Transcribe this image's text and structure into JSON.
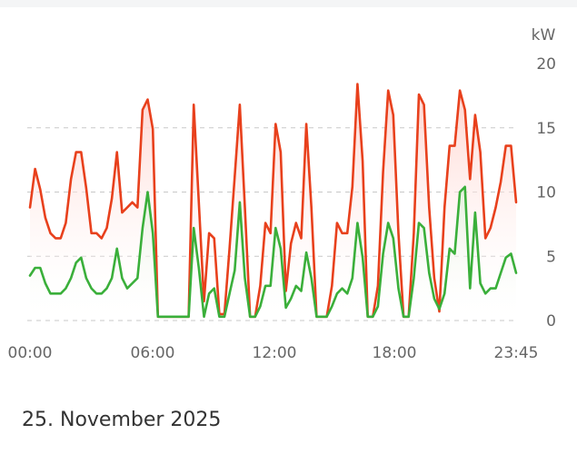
{
  "date": "25. November 2025",
  "chart_data": {
    "type": "area",
    "unit": "kW",
    "ylim": [
      0,
      20
    ],
    "y_ticks": [
      0,
      5,
      10,
      15,
      20
    ],
    "x_ticks": [
      "00:00",
      "06:00",
      "12:00",
      "18:00",
      "23:45"
    ],
    "grid": true,
    "series": [
      {
        "color": "#e8401c",
        "fill_top": "#ffd2cc",
        "points": [
          [
            0.0,
            8.8
          ],
          [
            0.25,
            11.8
          ],
          [
            0.5,
            10.2
          ],
          [
            0.75,
            8.0
          ],
          [
            1.0,
            6.8
          ],
          [
            1.25,
            6.4
          ],
          [
            1.5,
            6.4
          ],
          [
            1.75,
            7.6
          ],
          [
            2.0,
            11.0
          ],
          [
            2.25,
            13.1
          ],
          [
            2.5,
            13.1
          ],
          [
            2.75,
            10.3
          ],
          [
            3.0,
            6.8
          ],
          [
            3.25,
            6.8
          ],
          [
            3.5,
            6.4
          ],
          [
            3.75,
            7.2
          ],
          [
            4.0,
            9.5
          ],
          [
            4.25,
            13.1
          ],
          [
            4.5,
            8.4
          ],
          [
            4.75,
            8.8
          ],
          [
            5.0,
            9.2
          ],
          [
            5.25,
            8.8
          ],
          [
            5.5,
            16.4
          ],
          [
            5.75,
            17.2
          ],
          [
            6.0,
            14.9
          ],
          [
            6.25,
            0.3
          ],
          [
            7.75,
            0.3
          ],
          [
            8.0,
            16.8
          ],
          [
            8.25,
            9.2
          ],
          [
            8.5,
            1.5
          ],
          [
            8.75,
            6.8
          ],
          [
            9.0,
            6.4
          ],
          [
            9.25,
            0.5
          ],
          [
            9.5,
            0.5
          ],
          [
            9.75,
            5.6
          ],
          [
            10.0,
            11.2
          ],
          [
            10.25,
            16.8
          ],
          [
            10.5,
            8.8
          ],
          [
            10.75,
            0.3
          ],
          [
            11.0,
            0.3
          ],
          [
            11.25,
            2.7
          ],
          [
            11.5,
            7.6
          ],
          [
            11.75,
            6.8
          ],
          [
            12.0,
            15.3
          ],
          [
            12.25,
            13.1
          ],
          [
            12.5,
            2.3
          ],
          [
            12.75,
            6.0
          ],
          [
            13.0,
            7.6
          ],
          [
            13.25,
            6.4
          ],
          [
            13.5,
            15.3
          ],
          [
            13.75,
            8.8
          ],
          [
            14.0,
            0.3
          ],
          [
            14.25,
            0.3
          ],
          [
            14.5,
            0.3
          ],
          [
            14.75,
            2.7
          ],
          [
            15.0,
            7.6
          ],
          [
            15.25,
            6.8
          ],
          [
            15.5,
            6.8
          ],
          [
            15.75,
            10.4
          ],
          [
            16.0,
            18.4
          ],
          [
            16.25,
            12.4
          ],
          [
            16.5,
            0.3
          ],
          [
            16.75,
            0.3
          ],
          [
            17.0,
            2.7
          ],
          [
            17.25,
            11.6
          ],
          [
            17.5,
            17.9
          ],
          [
            17.75,
            16.0
          ],
          [
            18.0,
            6.8
          ],
          [
            18.25,
            0.3
          ],
          [
            18.5,
            0.3
          ],
          [
            18.75,
            6.8
          ],
          [
            19.0,
            17.6
          ],
          [
            19.25,
            16.8
          ],
          [
            19.5,
            8.8
          ],
          [
            19.75,
            3.3
          ],
          [
            20.0,
            0.7
          ],
          [
            20.25,
            8.8
          ],
          [
            20.5,
            13.6
          ],
          [
            20.75,
            13.6
          ],
          [
            21.0,
            17.9
          ],
          [
            21.25,
            16.4
          ],
          [
            21.5,
            11.0
          ],
          [
            21.75,
            16.0
          ],
          [
            22.0,
            13.1
          ],
          [
            22.25,
            6.4
          ],
          [
            22.5,
            7.2
          ],
          [
            22.75,
            8.8
          ],
          [
            23.0,
            10.8
          ],
          [
            23.25,
            13.6
          ],
          [
            23.5,
            13.6
          ],
          [
            23.75,
            9.2
          ]
        ]
      },
      {
        "color": "#3aaf3a",
        "fill_top": "#e5f2df",
        "points": [
          [
            0.0,
            3.5
          ],
          [
            0.25,
            4.1
          ],
          [
            0.5,
            4.1
          ],
          [
            0.75,
            2.9
          ],
          [
            1.0,
            2.1
          ],
          [
            1.25,
            2.1
          ],
          [
            1.5,
            2.1
          ],
          [
            1.75,
            2.5
          ],
          [
            2.0,
            3.3
          ],
          [
            2.25,
            4.5
          ],
          [
            2.5,
            4.9
          ],
          [
            2.75,
            3.3
          ],
          [
            3.0,
            2.5
          ],
          [
            3.25,
            2.1
          ],
          [
            3.5,
            2.1
          ],
          [
            3.75,
            2.5
          ],
          [
            4.0,
            3.3
          ],
          [
            4.25,
            5.6
          ],
          [
            4.5,
            3.3
          ],
          [
            4.75,
            2.5
          ],
          [
            5.0,
            2.9
          ],
          [
            5.25,
            3.3
          ],
          [
            5.5,
            7.2
          ],
          [
            5.75,
            10.0
          ],
          [
            6.0,
            6.8
          ],
          [
            6.25,
            0.3
          ],
          [
            7.75,
            0.3
          ],
          [
            8.0,
            7.2
          ],
          [
            8.25,
            4.1
          ],
          [
            8.5,
            0.3
          ],
          [
            8.75,
            2.1
          ],
          [
            9.0,
            2.5
          ],
          [
            9.25,
            0.3
          ],
          [
            9.5,
            0.3
          ],
          [
            9.75,
            2.1
          ],
          [
            10.0,
            3.9
          ],
          [
            10.25,
            9.2
          ],
          [
            10.5,
            3.3
          ],
          [
            10.75,
            0.3
          ],
          [
            11.0,
            0.3
          ],
          [
            11.25,
            1.1
          ],
          [
            11.5,
            2.7
          ],
          [
            11.75,
            2.7
          ],
          [
            12.0,
            7.2
          ],
          [
            12.25,
            5.6
          ],
          [
            12.5,
            1.0
          ],
          [
            12.75,
            1.7
          ],
          [
            13.0,
            2.7
          ],
          [
            13.25,
            2.3
          ],
          [
            13.5,
            5.3
          ],
          [
            13.75,
            3.3
          ],
          [
            14.0,
            0.3
          ],
          [
            14.25,
            0.3
          ],
          [
            14.5,
            0.3
          ],
          [
            14.75,
            1.1
          ],
          [
            15.0,
            2.1
          ],
          [
            15.25,
            2.5
          ],
          [
            15.5,
            2.1
          ],
          [
            15.75,
            3.3
          ],
          [
            16.0,
            7.6
          ],
          [
            16.25,
            4.9
          ],
          [
            16.5,
            0.3
          ],
          [
            16.75,
            0.3
          ],
          [
            17.0,
            1.1
          ],
          [
            17.25,
            5.2
          ],
          [
            17.5,
            7.6
          ],
          [
            17.75,
            6.4
          ],
          [
            18.0,
            2.5
          ],
          [
            18.25,
            0.3
          ],
          [
            18.5,
            0.3
          ],
          [
            18.75,
            3.3
          ],
          [
            19.0,
            7.6
          ],
          [
            19.25,
            7.2
          ],
          [
            19.5,
            3.7
          ],
          [
            19.75,
            1.7
          ],
          [
            20.0,
            0.9
          ],
          [
            20.25,
            2.1
          ],
          [
            20.5,
            5.6
          ],
          [
            20.75,
            5.2
          ],
          [
            21.0,
            10.0
          ],
          [
            21.25,
            10.4
          ],
          [
            21.5,
            2.5
          ],
          [
            21.75,
            8.4
          ],
          [
            22.0,
            2.9
          ],
          [
            22.25,
            2.1
          ],
          [
            22.5,
            2.5
          ],
          [
            22.75,
            2.5
          ],
          [
            23.0,
            3.7
          ],
          [
            23.25,
            4.9
          ],
          [
            23.5,
            5.2
          ],
          [
            23.75,
            3.7
          ]
        ]
      }
    ]
  }
}
